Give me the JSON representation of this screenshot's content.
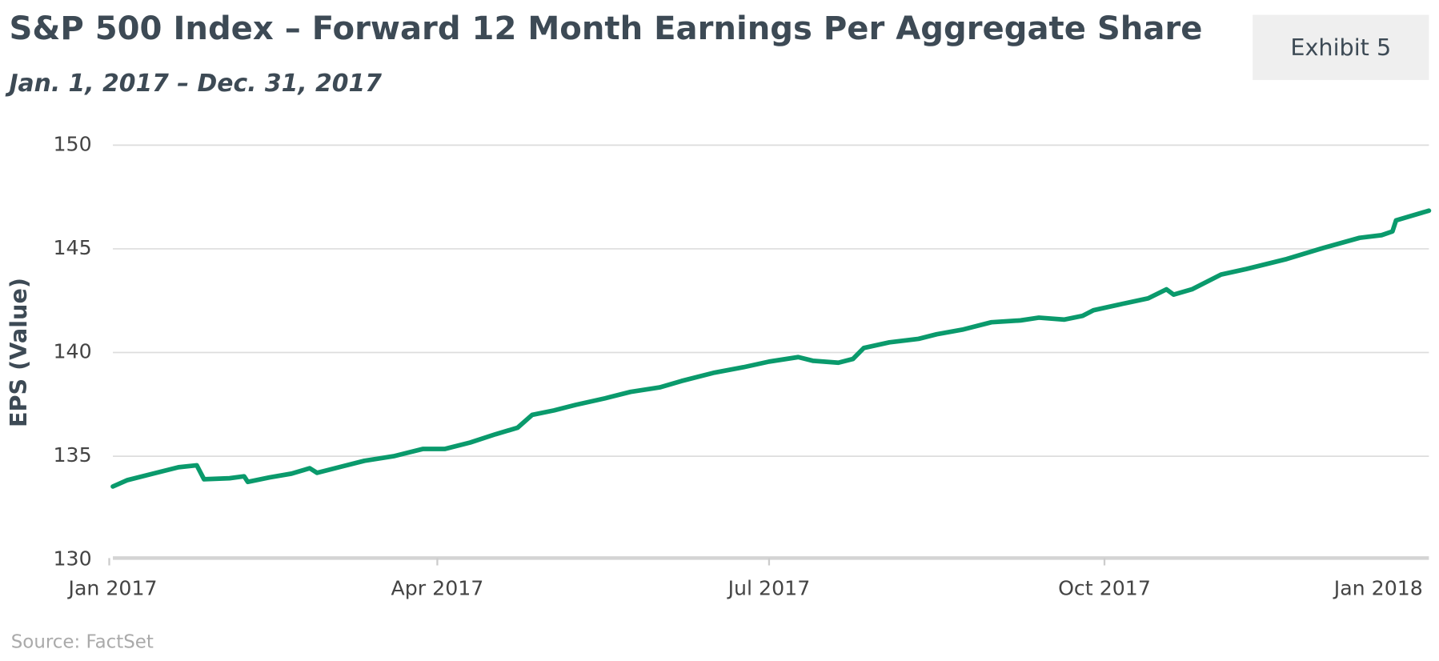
{
  "chart_data": {
    "type": "line",
    "title": "S&P 500 Index – Forward 12 Month Earnings Per Aggregate Share",
    "subtitle": "Jan. 1, 2017 – Dec. 31, 2017",
    "badge": "Exhibit 5",
    "y_label": "EPS (Value)",
    "source": "Source: FactSet",
    "x": [
      "2017-01-02",
      "2017-01-06",
      "2017-01-13",
      "2017-01-20",
      "2017-01-25",
      "2017-01-27",
      "2017-02-03",
      "2017-02-07",
      "2017-02-08",
      "2017-02-14",
      "2017-02-20",
      "2017-02-25",
      "2017-02-27",
      "2017-03-05",
      "2017-03-12",
      "2017-03-20",
      "2017-03-28",
      "2017-04-03",
      "2017-04-10",
      "2017-04-17",
      "2017-04-23",
      "2017-04-27",
      "2017-05-03",
      "2017-05-09",
      "2017-05-17",
      "2017-05-24",
      "2017-06-01",
      "2017-06-07",
      "2017-06-16",
      "2017-06-24",
      "2017-07-01",
      "2017-07-09",
      "2017-07-13",
      "2017-07-20",
      "2017-07-24",
      "2017-07-27",
      "2017-08-03",
      "2017-08-11",
      "2017-08-16",
      "2017-08-23",
      "2017-08-31",
      "2017-09-08",
      "2017-09-13",
      "2017-09-20",
      "2017-09-25",
      "2017-09-28",
      "2017-10-06",
      "2017-10-13",
      "2017-10-18",
      "2017-10-20",
      "2017-10-25",
      "2017-11-02",
      "2017-11-09",
      "2017-11-20",
      "2017-11-30",
      "2017-12-10",
      "2017-12-16",
      "2017-12-19",
      "2017-12-20",
      "2017-12-29"
    ],
    "series": [
      {
        "name": "EPS",
        "color": "#0a9a6c",
        "values": [
          133.54,
          133.85,
          134.16,
          134.47,
          134.56,
          133.89,
          133.94,
          134.03,
          133.76,
          133.98,
          134.16,
          134.42,
          134.2,
          134.47,
          134.78,
          135.0,
          135.35,
          135.35,
          135.66,
          136.06,
          136.37,
          136.99,
          137.21,
          137.48,
          137.79,
          138.1,
          138.32,
          138.63,
          139.03,
          139.29,
          139.56,
          139.78,
          139.6,
          139.51,
          139.69,
          140.22,
          140.49,
          140.66,
          140.88,
          141.1,
          141.46,
          141.55,
          141.68,
          141.59,
          141.77,
          142.04,
          142.35,
          142.61,
          143.05,
          142.79,
          143.05,
          143.76,
          144.03,
          144.51,
          145.04,
          145.53,
          145.66,
          145.84,
          146.37,
          146.84
        ]
      }
    ],
    "xlim": [
      "2017-01-02",
      "2017-12-29"
    ],
    "xticks": [
      {
        "value": "2017-01-01",
        "label": "Jan 2017"
      },
      {
        "value": "2017-04-01",
        "label": "Apr 2017"
      },
      {
        "value": "2017-07-01",
        "label": "Jul 2017"
      },
      {
        "value": "2017-10-01",
        "label": "Oct 2017"
      },
      {
        "value": "2018-01-01",
        "label": "Jan 2018"
      }
    ],
    "ylim": [
      130,
      150
    ],
    "yticks": [
      130,
      135,
      140,
      145,
      150
    ],
    "grid": true
  }
}
